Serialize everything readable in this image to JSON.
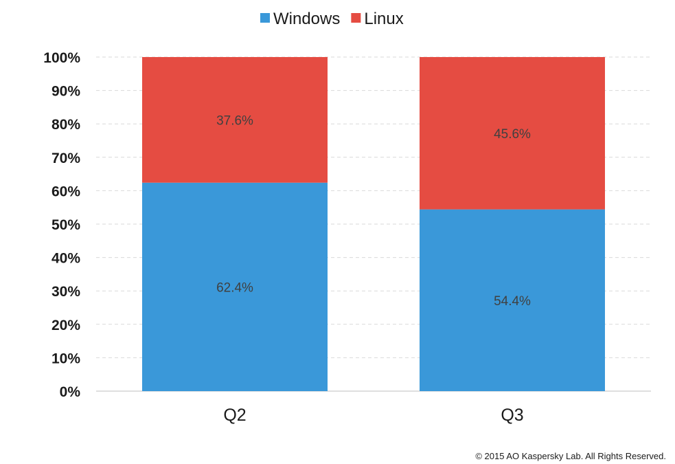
{
  "chart_data": {
    "type": "bar",
    "stacked": true,
    "categories": [
      "Q2",
      "Q3"
    ],
    "series": [
      {
        "name": "Windows",
        "values": [
          62.4,
          54.4
        ],
        "color": "#3a98d9",
        "labels": [
          "62.4%",
          "54.4%"
        ]
      },
      {
        "name": "Linux",
        "values": [
          37.6,
          45.6
        ],
        "color": "#e54c42",
        "labels": [
          "37.6%",
          "45.6%"
        ]
      }
    ],
    "ylim": [
      0,
      100
    ],
    "yticks": [
      "0%",
      "10%",
      "20%",
      "30%",
      "40%",
      "50%",
      "60%",
      "70%",
      "80%",
      "90%",
      "100%"
    ],
    "grid": true,
    "legend_position": "top-center"
  },
  "footer": {
    "copyright": "© 2015 AO Kaspersky Lab. All Rights Reserved."
  }
}
